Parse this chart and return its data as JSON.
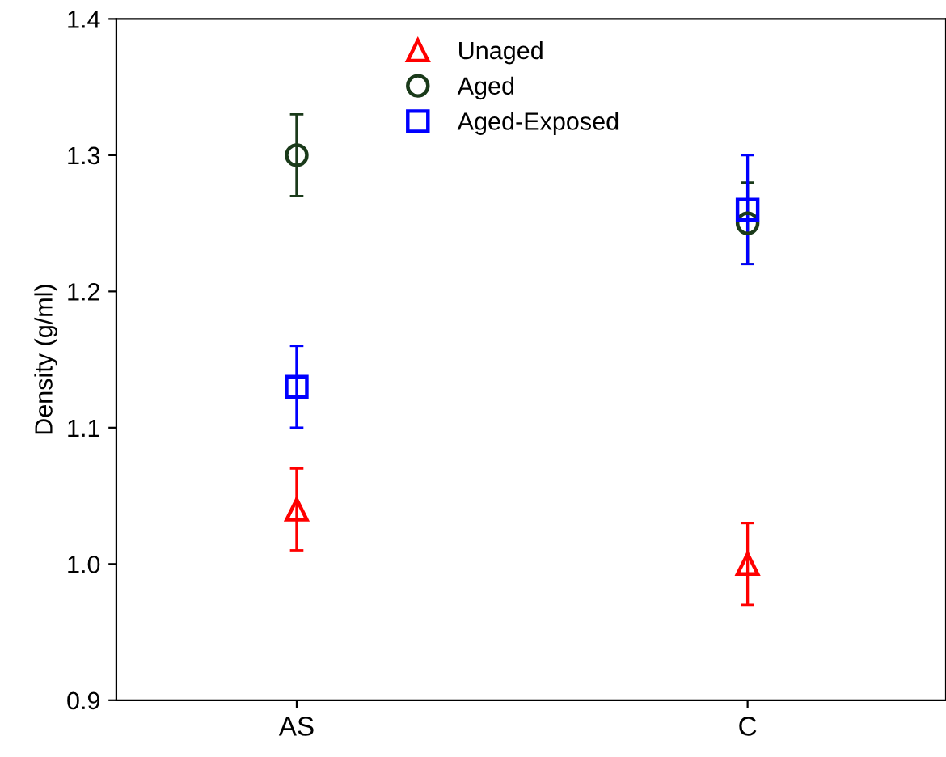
{
  "chart_data": {
    "type": "scatter",
    "ylabel": "Density (g/ml)",
    "categories": [
      "AS",
      "C"
    ],
    "ylim": [
      0.9,
      1.4
    ],
    "yticks": [
      0.9,
      {
        "value": 1.0,
        "label": "1.0"
      },
      1.1,
      1.2,
      1.3,
      1.4
    ],
    "grid": false,
    "legend": "top",
    "series": [
      {
        "name": "Unaged",
        "color": "#ff0000",
        "marker": "triangle",
        "values": [
          1.04,
          1.0
        ],
        "errors": [
          0.03,
          0.03
        ]
      },
      {
        "name": "Aged",
        "color": "#1a3a1a",
        "marker": "circle",
        "values": [
          1.3,
          1.25
        ],
        "errors": [
          0.03,
          0.03
        ]
      },
      {
        "name": "Aged-Exposed",
        "color": "#0000ff",
        "marker": "square",
        "values": [
          1.13,
          1.26
        ],
        "errors": [
          0.03,
          0.04
        ]
      }
    ]
  }
}
